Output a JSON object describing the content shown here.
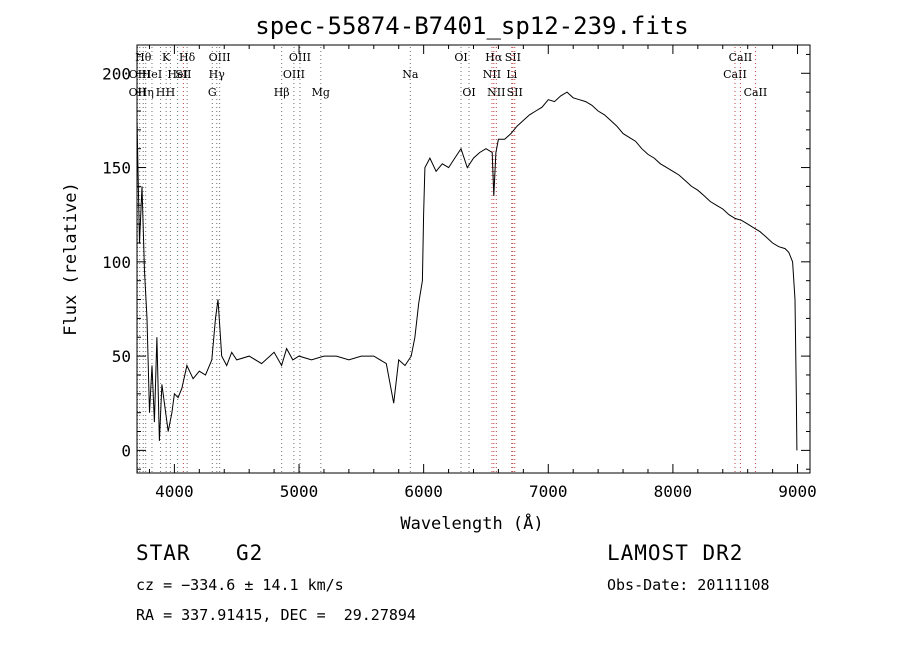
{
  "chart_data": {
    "type": "line",
    "title": "spec-55874-B7401_sp12-239.fits",
    "xlabel": "Wavelength (Å)",
    "ylabel": "Flux (relative)",
    "xlim": [
      3700,
      9100
    ],
    "ylim": [
      -12,
      215
    ],
    "x_ticks": [
      4000,
      5000,
      6000,
      7000,
      8000,
      9000
    ],
    "y_ticks": [
      0,
      50,
      100,
      150,
      200
    ],
    "grid": false,
    "series": [
      {
        "x": [
          3700,
          3720,
          3740,
          3760,
          3780,
          3800,
          3820,
          3840,
          3860,
          3880,
          3900,
          3920,
          3950,
          3980,
          4000,
          4030,
          4060,
          4100,
          4150,
          4200,
          4250,
          4300,
          4330,
          4350,
          4380,
          4420,
          4460,
          4500,
          4600,
          4700,
          4800,
          4860,
          4900,
          4950,
          5000,
          5100,
          5200,
          5300,
          5400,
          5500,
          5600,
          5700,
          5760,
          5800,
          5850,
          5900,
          5930,
          5960,
          5990,
          6000,
          6010,
          6050,
          6100,
          6150,
          6200,
          6250,
          6300,
          6350,
          6400,
          6450,
          6500,
          6550,
          6563,
          6580,
          6600,
          6650,
          6700,
          6750,
          6800,
          6850,
          6900,
          6950,
          7000,
          7050,
          7100,
          7150,
          7200,
          7250,
          7300,
          7350,
          7400,
          7450,
          7500,
          7550,
          7600,
          7650,
          7700,
          7750,
          7800,
          7850,
          7900,
          7950,
          8000,
          8050,
          8100,
          8150,
          8200,
          8250,
          8300,
          8350,
          8400,
          8450,
          8500,
          8550,
          8600,
          8650,
          8700,
          8750,
          8800,
          8850,
          8900,
          8930,
          8960,
          8980,
          8990,
          8995
        ],
        "y": [
          175,
          110,
          140,
          95,
          70,
          20,
          45,
          15,
          60,
          5,
          35,
          25,
          10,
          20,
          30,
          28,
          33,
          45,
          38,
          42,
          40,
          48,
          70,
          80,
          50,
          45,
          52,
          48,
          50,
          46,
          52,
          45,
          54,
          48,
          50,
          48,
          50,
          50,
          48,
          50,
          50,
          46,
          25,
          48,
          45,
          50,
          60,
          78,
          90,
          125,
          150,
          155,
          148,
          152,
          150,
          155,
          160,
          150,
          155,
          158,
          160,
          158,
          135,
          158,
          165,
          165,
          168,
          172,
          175,
          178,
          180,
          182,
          186,
          185,
          188,
          190,
          187,
          186,
          185,
          183,
          180,
          178,
          175,
          172,
          168,
          166,
          164,
          160,
          157,
          155,
          152,
          150,
          148,
          146,
          143,
          140,
          138,
          135,
          132,
          130,
          128,
          125,
          123,
          122,
          120,
          118,
          116,
          113,
          110,
          108,
          107,
          105,
          100,
          80,
          30,
          0
        ]
      }
    ],
    "line_markers": [
      {
        "x": 3704,
        "label": "OII",
        "row": 2
      },
      {
        "x": 3722,
        "label": "OIII",
        "row": 1
      },
      {
        "x": 3750,
        "label": "Hθ",
        "row": 0
      },
      {
        "x": 3770,
        "label": "Hη",
        "row": 2
      },
      {
        "x": 3820,
        "label": "HeI",
        "row": 1
      },
      {
        "x": 3889,
        "label": "H",
        "row": 2
      },
      {
        "x": 3934,
        "label": "K",
        "row": 0
      },
      {
        "x": 3968,
        "label": "H",
        "row": 2
      },
      {
        "x": 4026,
        "label": "HeI",
        "row": 1
      },
      {
        "x": 4072,
        "label": "SII",
        "row": 1
      },
      {
        "x": 4102,
        "label": "Hδ",
        "row": 0
      },
      {
        "x": 4304,
        "label": "G",
        "row": 2
      },
      {
        "x": 4340,
        "label": "Hγ",
        "row": 1
      },
      {
        "x": 4363,
        "label": "OIII",
        "row": 0
      },
      {
        "x": 4861,
        "label": "Hβ",
        "row": 2
      },
      {
        "x": 4959,
        "label": "OIII",
        "row": 1
      },
      {
        "x": 5007,
        "label": "OIII",
        "row": 0
      },
      {
        "x": 5175,
        "label": "Mg",
        "row": 2
      },
      {
        "x": 5893,
        "label": "Na",
        "row": 1
      },
      {
        "x": 6300,
        "label": "OI",
        "row": 0
      },
      {
        "x": 6364,
        "label": "OI",
        "row": 2
      },
      {
        "x": 6548,
        "label": "NII",
        "row": 1
      },
      {
        "x": 6563,
        "label": "Hα",
        "row": 0
      },
      {
        "x": 6583,
        "label": "NII",
        "row": 2
      },
      {
        "x": 6707,
        "label": "Li",
        "row": 1
      },
      {
        "x": 6716,
        "label": "SII",
        "row": 0
      },
      {
        "x": 6731,
        "label": "SII",
        "row": 2
      },
      {
        "x": 8498,
        "label": "CaII",
        "row": 1
      },
      {
        "x": 8542,
        "label": "CaII",
        "row": 0
      },
      {
        "x": 8662,
        "label": "CaII",
        "row": 2
      }
    ]
  },
  "info": {
    "object_class": "STAR",
    "subclass": "G2",
    "survey": "LAMOST DR2",
    "redshift": "cz = −334.6 ± 14.1 km/s",
    "obs_date": "Obs-Date: 20111108",
    "coords": "RA = 337.91415, DEC =  29.27894"
  },
  "colors": {
    "spectrum": "#000000",
    "marker_line": "#707070",
    "marker_line_red": "#c04040",
    "text": "#000000"
  }
}
